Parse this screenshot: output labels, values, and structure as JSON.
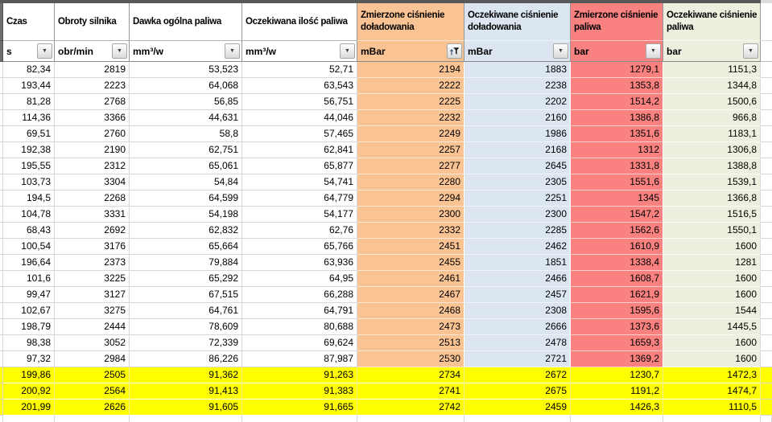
{
  "columns": [
    {
      "name": "Czas",
      "unit": "s"
    },
    {
      "name": "Obroty silnika",
      "unit": "obr/min"
    },
    {
      "name": "Dawka ogólna paliwa",
      "unit": "mm³/w"
    },
    {
      "name": "Oczekiwana ilość paliwa",
      "unit": "mm³/w"
    },
    {
      "name": "Zmierzone ciśnienie doładowania",
      "unit": "mBar"
    },
    {
      "name": "Oczekiwane ciśnienie doładowania",
      "unit": "mBar"
    },
    {
      "name": "Zmierzone ciśnienie paliwa",
      "unit": "bar"
    },
    {
      "name": "Oczekiwane ciśnienie paliwa",
      "unit": "bar"
    }
  ],
  "rows": [
    [
      "82,34",
      "2819",
      "53,523",
      "52,71",
      "2194",
      "1883",
      "1279,1",
      "1151,3"
    ],
    [
      "193,44",
      "2223",
      "64,068",
      "63,543",
      "2222",
      "2238",
      "1353,8",
      "1344,8"
    ],
    [
      "81,28",
      "2768",
      "56,85",
      "56,751",
      "2225",
      "2202",
      "1514,2",
      "1500,6"
    ],
    [
      "114,36",
      "3366",
      "44,631",
      "44,046",
      "2232",
      "2160",
      "1386,8",
      "966,8"
    ],
    [
      "69,51",
      "2760",
      "58,8",
      "57,465",
      "2249",
      "1986",
      "1351,6",
      "1183,1"
    ],
    [
      "192,38",
      "2190",
      "62,751",
      "62,841",
      "2257",
      "2168",
      "1312",
      "1306,8"
    ],
    [
      "195,55",
      "2312",
      "65,061",
      "65,877",
      "2277",
      "2645",
      "1331,8",
      "1388,8"
    ],
    [
      "103,73",
      "3304",
      "54,84",
      "54,741",
      "2280",
      "2305",
      "1551,6",
      "1539,1"
    ],
    [
      "194,5",
      "2268",
      "64,599",
      "64,779",
      "2294",
      "2251",
      "1345",
      "1366,8"
    ],
    [
      "104,78",
      "3331",
      "54,198",
      "54,177",
      "2300",
      "2300",
      "1547,2",
      "1516,5"
    ],
    [
      "68,43",
      "2692",
      "62,832",
      "62,76",
      "2332",
      "2285",
      "1562,6",
      "1550,1"
    ],
    [
      "100,54",
      "3176",
      "65,664",
      "65,766",
      "2451",
      "2462",
      "1610,9",
      "1600"
    ],
    [
      "196,64",
      "2373",
      "79,884",
      "63,936",
      "2455",
      "1851",
      "1338,4",
      "1281"
    ],
    [
      "101,6",
      "3225",
      "65,292",
      "64,95",
      "2461",
      "2466",
      "1608,7",
      "1600"
    ],
    [
      "99,47",
      "3127",
      "67,515",
      "66,288",
      "2467",
      "2457",
      "1621,9",
      "1600"
    ],
    [
      "102,67",
      "3275",
      "64,761",
      "64,791",
      "2468",
      "2308",
      "1595,6",
      "1544"
    ],
    [
      "198,79",
      "2444",
      "78,609",
      "80,688",
      "2473",
      "2666",
      "1373,6",
      "1445,5"
    ],
    [
      "98,38",
      "3052",
      "72,339",
      "69,624",
      "2513",
      "2478",
      "1659,3",
      "1600"
    ],
    [
      "97,32",
      "2984",
      "86,226",
      "87,987",
      "2530",
      "2721",
      "1369,2",
      "1600"
    ],
    [
      "199,86",
      "2505",
      "91,362",
      "91,263",
      "2734",
      "2672",
      "1230,7",
      "1472,3"
    ],
    [
      "200,92",
      "2564",
      "91,413",
      "91,383",
      "2741",
      "2675",
      "1191,2",
      "1474,7"
    ],
    [
      "201,99",
      "2626",
      "91,605",
      "91,665",
      "2742",
      "2459",
      "1426,3",
      "1110,5"
    ]
  ],
  "highlighted_row_indices": [
    19,
    20,
    21
  ],
  "filter_state": {
    "sorted_filtered_column": "Zmierzone ciśnienie doładowania"
  },
  "icons": {
    "dropdown_arrow": "▼"
  },
  "colors": {
    "boost_measured_fill": "#fac393",
    "boost_expected_fill": "#dce6f1",
    "fuel_measured_fill": "#f98280",
    "fuel_expected_fill": "#ebf1de",
    "highlight_fill": "#ffff00"
  }
}
